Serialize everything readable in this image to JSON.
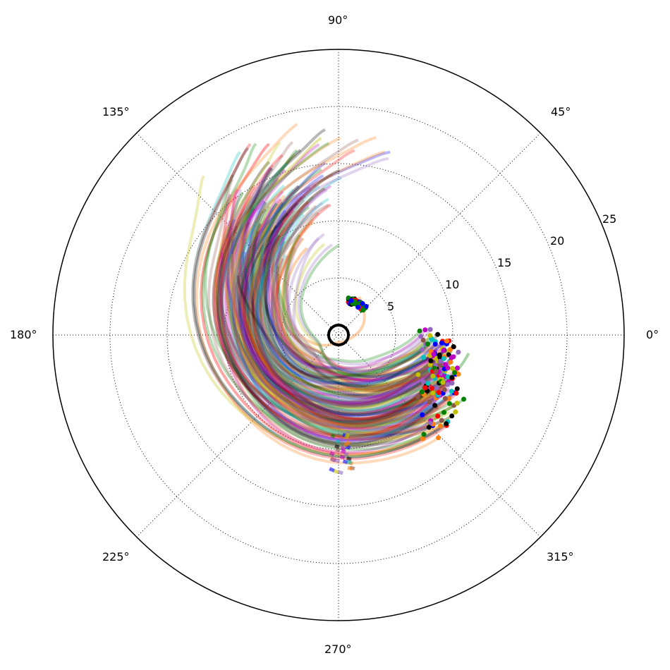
{
  "chart_data": {
    "type": "polar_line_scatter",
    "title": "",
    "theta_ticks": [
      "0°",
      "45°",
      "90°",
      "135°",
      "180°",
      "225°",
      "270°",
      "315°"
    ],
    "theta_tick_degrees": [
      0,
      45,
      90,
      135,
      180,
      225,
      270,
      315
    ],
    "r_ticks": [
      "5",
      "10",
      "15",
      "20",
      "25"
    ],
    "r_tick_values": [
      5,
      10,
      15,
      20,
      25
    ],
    "rlim": [
      0,
      25
    ],
    "grid": true,
    "central_marker": {
      "r": 0,
      "color": "#000000"
    },
    "colors": [
      "#ff0000",
      "#008000",
      "#0000ff",
      "#000000",
      "#c000c0",
      "#00bfbf",
      "#bfbf00",
      "#ff7f0e",
      "#8c564b",
      "#9467bd"
    ],
    "series": [
      {
        "color": "#ff7f0e",
        "points": [
          [
            -10.4,
            9.5
          ],
          [
            -40,
            5.4
          ],
          [
            -140,
            2.7
          ],
          [
            -210,
            5.7
          ],
          [
            -250,
            9.0
          ]
        ]
      },
      {
        "color": "#0000ff",
        "points": [
          [
            -28,
            9.5
          ],
          [
            -55,
            8.2
          ],
          [
            -135,
            6.8
          ],
          [
            -225,
            9.6
          ],
          [
            -253,
            12.1
          ]
        ]
      },
      {
        "color": "#008000",
        "points": [
          [
            -24,
            10.5
          ],
          [
            -60,
            7.6
          ],
          [
            -125,
            6.4
          ],
          [
            -200,
            8.0
          ],
          [
            -235,
            11.9
          ]
        ]
      },
      {
        "color": "#ff0000",
        "points": [
          [
            -16,
            9.4
          ],
          [
            -50,
            6.2
          ],
          [
            -110,
            4.1
          ],
          [
            -210,
            7.8
          ],
          [
            -255,
            12.5
          ]
        ]
      },
      {
        "color": "#000000",
        "points": [
          [
            -8,
            8.7
          ],
          [
            -45,
            5.4
          ],
          [
            -100,
            3.7
          ],
          [
            -190,
            6.0
          ],
          [
            -230,
            10.3
          ]
        ]
      },
      {
        "color": "#c000c0",
        "points": [
          [
            -30,
            9.6
          ],
          [
            -60,
            9.0
          ],
          [
            -125,
            7.3
          ],
          [
            -205,
            9.4
          ],
          [
            -247,
            12.9
          ]
        ]
      },
      {
        "color": "#00bfbf",
        "points": [
          [
            -22,
            8.4
          ],
          [
            -60,
            6.2
          ],
          [
            -130,
            5.0
          ],
          [
            -212,
            8.0
          ],
          [
            -247,
            11.5
          ]
        ]
      },
      {
        "color": "#bfbf00",
        "points": [
          [
            -35,
            11.8
          ],
          [
            -70,
            9.1
          ],
          [
            -150,
            7.6
          ],
          [
            -240,
            13.7
          ],
          [
            -265,
            17.3
          ]
        ]
      },
      {
        "color": "#008000",
        "points": [
          [
            -2,
            7.9
          ],
          [
            -40,
            4.6
          ],
          [
            -110,
            3.3
          ],
          [
            -200,
            5.5
          ],
          [
            -240,
            9.5
          ]
        ]
      },
      {
        "color": "#0000ff",
        "points": [
          [
            -36,
            10.5
          ],
          [
            -75,
            9.7
          ],
          [
            -150,
            9.1
          ],
          [
            -222,
            12.2
          ],
          [
            -248,
            15.8
          ]
        ]
      },
      {
        "color": "#ff0000",
        "points": [
          [
            -42,
            12.0
          ],
          [
            -80,
            10.6
          ],
          [
            -150,
            10.3
          ],
          [
            -225,
            14.5
          ],
          [
            -250,
            17.8
          ]
        ]
      },
      {
        "color": "#000000",
        "points": [
          [
            -14,
            10.1
          ],
          [
            -45,
            7.4
          ],
          [
            -115,
            5.9
          ],
          [
            -215,
            9.3
          ],
          [
            -255,
            13.5
          ]
        ]
      },
      {
        "color": "#c000c0",
        "points": [
          [
            -26,
            10.8
          ],
          [
            -65,
            8.6
          ],
          [
            -140,
            8.0
          ],
          [
            -220,
            11.7
          ],
          [
            -252,
            15.2
          ]
        ]
      },
      {
        "color": "#00bfbf",
        "points": [
          [
            -12,
            9.0
          ],
          [
            -50,
            6.6
          ],
          [
            -120,
            5.7
          ],
          [
            -205,
            8.6
          ],
          [
            -245,
            12.7
          ]
        ]
      },
      {
        "color": "#ff7f0e",
        "points": [
          [
            62,
            3.8
          ],
          [
            30,
            2.6
          ],
          [
            -30,
            0.9
          ],
          [
            -140,
            1.4
          ],
          [
            -250,
            8.1
          ]
        ]
      },
      {
        "color": "#008000",
        "points": [
          [
            -8,
            11.5
          ],
          [
            -45,
            9.2
          ],
          [
            -115,
            8.0
          ],
          [
            -200,
            11.1
          ],
          [
            -236,
            15.0
          ]
        ]
      }
    ],
    "endpoint_markers": {
      "outer_cluster": {
        "theta_range": [
          -40,
          25
        ],
        "r_range": [
          8.0,
          11.3
        ]
      },
      "inner_cluster": {
        "theta_range": [
          45,
          75
        ],
        "r_range": [
          2.9,
          3.5
        ]
      },
      "segment_cluster": {
        "theta_range": [
          -95,
          -85
        ],
        "r_range": [
          8.5,
          12.0
        ]
      }
    }
  }
}
